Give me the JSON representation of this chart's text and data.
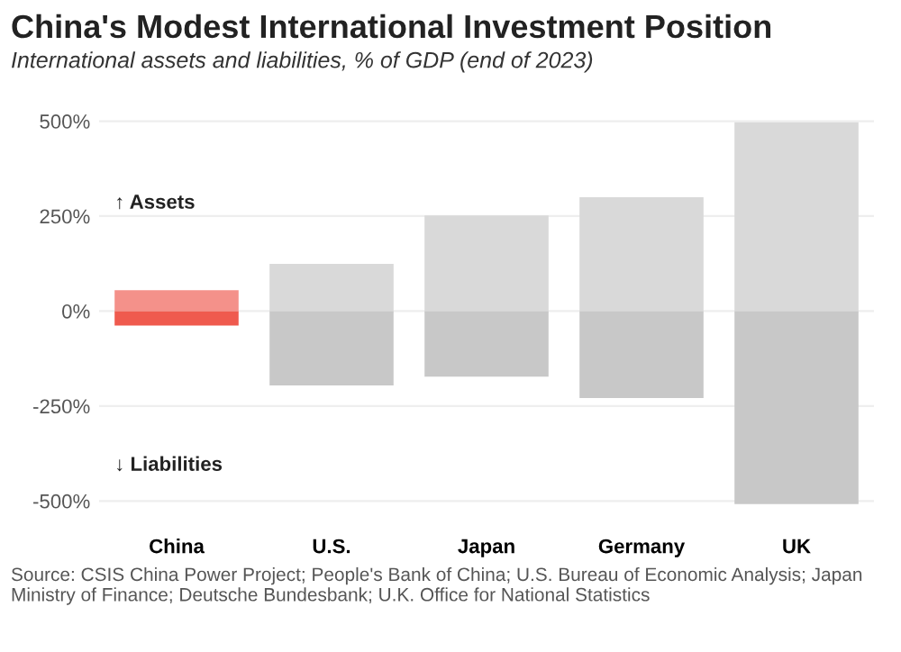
{
  "chart_data": {
    "type": "bar",
    "title": "China's Modest International Investment Position",
    "subtitle": "International assets and liabilities, % of GDP (end of 2023)",
    "categories": [
      "China",
      "U.S.",
      "Japan",
      "Germany",
      "UK"
    ],
    "stacked": true,
    "series": [
      {
        "colors": [
          "#f4918a",
          "#d9d9d9",
          "#d9d9d9",
          "#d9d9d9",
          "#d9d9d9"
        ],
        "values": [
          55,
          124,
          252,
          300,
          497
        ]
      },
      {
        "colors": [
          "#ef5a4e",
          "#c8c8c8",
          "#c8c8c8",
          "#c8c8c8",
          "#c8c8c8"
        ],
        "values": [
          -38,
          -196,
          -173,
          -229,
          -508
        ]
      }
    ],
    "ylim": [
      -520,
      510
    ],
    "yticks": [
      {
        "value": -500,
        "label": "-500%"
      },
      {
        "value": -250,
        "label": "-250%"
      },
      {
        "value": 0,
        "label": "0%"
      },
      {
        "value": 250,
        "label": "250%"
      },
      {
        "value": 500,
        "label": "500%"
      }
    ],
    "grid": "y",
    "annotations": [
      "↑ Assets",
      "↓ Liabilities",
      "Source: CSIS China Power Project; People's Bank of China; U.S. Bureau of Economic Analysis; Japan Ministry of Finance; Deutsche Bundesbank; U.K. Office for National Statistics"
    ]
  }
}
